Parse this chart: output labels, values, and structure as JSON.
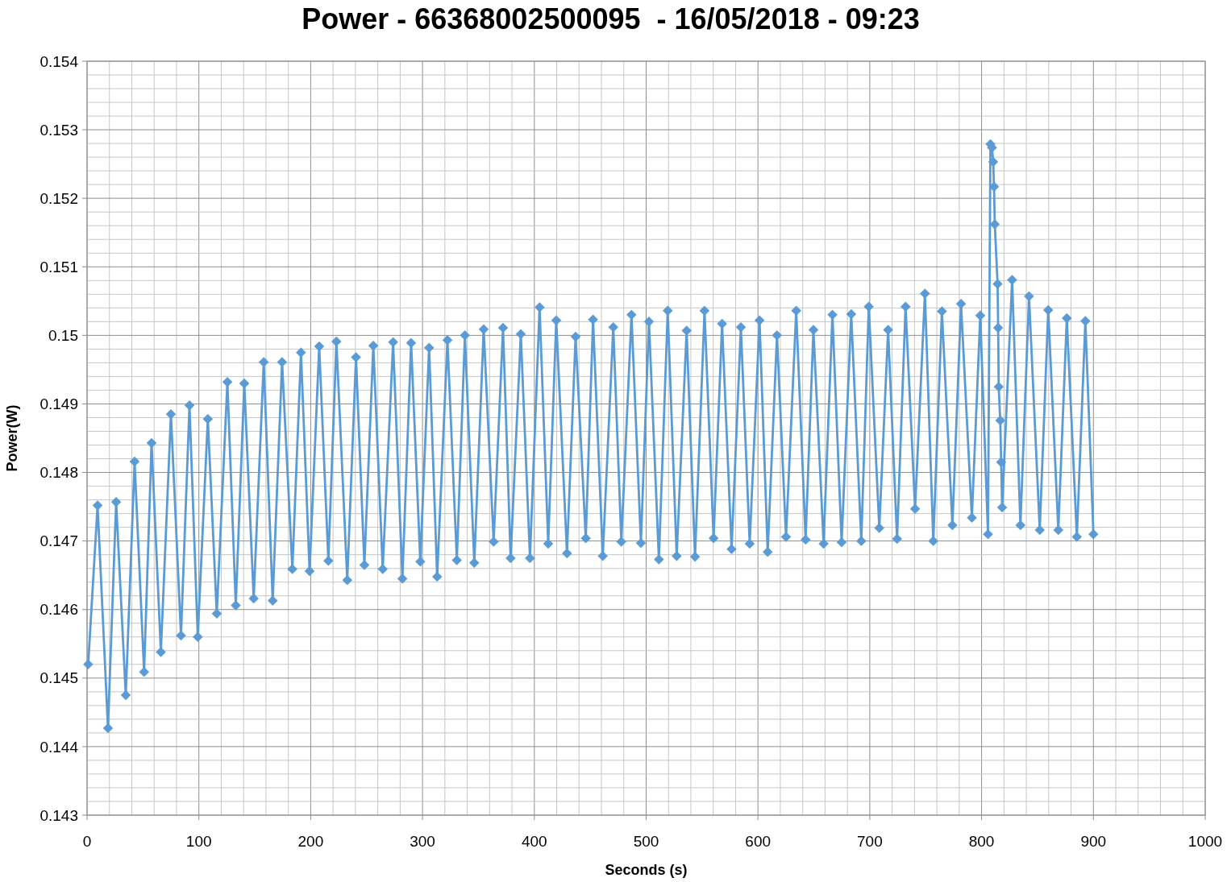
{
  "chart_data": {
    "type": "line",
    "title": "Power - 66368002500095  - 16/05/2018 - 09:23",
    "xlabel": "Seconds (s)",
    "ylabel": "Power(W)",
    "color": "#5b9bd5",
    "marker": "diamond",
    "line_style": "solid",
    "grid": true,
    "xlim": [
      0,
      1000
    ],
    "ylim": [
      0.143,
      0.154
    ],
    "xticks": [
      0,
      {
        "value": 20,
        "label": null
      },
      {
        "value": 40,
        "label": null
      },
      {
        "value": 60,
        "label": null
      },
      {
        "value": 80,
        "label": null
      },
      100,
      {
        "value": 120,
        "label": null
      },
      {
        "value": 140,
        "label": null
      },
      {
        "value": 160,
        "label": null
      },
      {
        "value": 180,
        "label": null
      },
      200,
      {
        "value": 220,
        "label": null
      },
      {
        "value": 240,
        "label": null
      },
      {
        "value": 260,
        "label": null
      },
      {
        "value": 280,
        "label": null
      },
      300,
      {
        "value": 320,
        "label": null
      },
      {
        "value": 340,
        "label": null
      },
      {
        "value": 360,
        "label": null
      },
      {
        "value": 380,
        "label": null
      },
      400,
      {
        "value": 420,
        "label": null
      },
      {
        "value": 440,
        "label": null
      },
      {
        "value": 460,
        "label": null
      },
      {
        "value": 480,
        "label": null
      },
      500,
      {
        "value": 520,
        "label": null
      },
      {
        "value": 540,
        "label": null
      },
      {
        "value": 560,
        "label": null
      },
      {
        "value": 580,
        "label": null
      },
      600,
      {
        "value": 620,
        "label": null
      },
      {
        "value": 640,
        "label": null
      },
      {
        "value": 660,
        "label": null
      },
      {
        "value": 680,
        "label": null
      },
      700,
      {
        "value": 720,
        "label": null
      },
      {
        "value": 740,
        "label": null
      },
      {
        "value": 760,
        "label": null
      },
      {
        "value": 780,
        "label": null
      },
      800,
      {
        "value": 820,
        "label": null
      },
      {
        "value": 840,
        "label": null
      },
      {
        "value": 860,
        "label": null
      },
      {
        "value": 880,
        "label": null
      },
      900,
      {
        "value": 920,
        "label": null
      },
      {
        "value": 940,
        "label": null
      },
      {
        "value": 960,
        "label": null
      },
      {
        "value": 980,
        "label": null
      },
      1000
    ],
    "yticks": [
      0.143,
      {
        "value": 0.1432,
        "label": null
      },
      {
        "value": 0.1434,
        "label": null
      },
      {
        "value": 0.1436,
        "label": null
      },
      {
        "value": 0.1438,
        "label": null
      },
      0.144,
      {
        "value": 0.1442,
        "label": null
      },
      {
        "value": 0.1444,
        "label": null
      },
      {
        "value": 0.1446,
        "label": null
      },
      {
        "value": 0.1448,
        "label": null
      },
      0.145,
      {
        "value": 0.1452,
        "label": null
      },
      {
        "value": 0.1454,
        "label": null
      },
      {
        "value": 0.1456,
        "label": null
      },
      {
        "value": 0.1458,
        "label": null
      },
      0.146,
      {
        "value": 0.1462,
        "label": null
      },
      {
        "value": 0.1464,
        "label": null
      },
      {
        "value": 0.1466,
        "label": null
      },
      {
        "value": 0.1468,
        "label": null
      },
      0.147,
      {
        "value": 0.1472,
        "label": null
      },
      {
        "value": 0.1474,
        "label": null
      },
      {
        "value": 0.1476,
        "label": null
      },
      {
        "value": 0.1478,
        "label": null
      },
      0.148,
      {
        "value": 0.1482,
        "label": null
      },
      {
        "value": 0.1484,
        "label": null
      },
      {
        "value": 0.1486,
        "label": null
      },
      {
        "value": 0.1488,
        "label": null
      },
      0.149,
      {
        "value": 0.1492,
        "label": null
      },
      {
        "value": 0.1494,
        "label": null
      },
      {
        "value": 0.1496,
        "label": null
      },
      {
        "value": 0.1498,
        "label": null
      },
      0.15,
      {
        "value": 0.1502,
        "label": null
      },
      {
        "value": 0.1504,
        "label": null
      },
      {
        "value": 0.1506,
        "label": null
      },
      {
        "value": 0.1508,
        "label": null
      },
      0.151,
      {
        "value": 0.1512,
        "label": null
      },
      {
        "value": 0.1514,
        "label": null
      },
      {
        "value": 0.1516,
        "label": null
      },
      {
        "value": 0.1518,
        "label": null
      },
      0.152,
      {
        "value": 0.1522,
        "label": null
      },
      {
        "value": 0.1524,
        "label": null
      },
      {
        "value": 0.1526,
        "label": null
      },
      {
        "value": 0.1528,
        "label": null
      },
      0.153,
      {
        "value": 0.1532,
        "label": null
      },
      {
        "value": 0.1534,
        "label": null
      },
      {
        "value": 0.1536,
        "label": null
      },
      {
        "value": 0.1538,
        "label": null
      },
      0.154
    ],
    "x": [
      1,
      9.4,
      18.7,
      26,
      34.6,
      42.5,
      51,
      57.7,
      66,
      75,
      84,
      91.6,
      99,
      108,
      116,
      125.5,
      133,
      140.6,
      149,
      158,
      166,
      174.4,
      183.6,
      191.3,
      199,
      207.6,
      215.8,
      223,
      232.7,
      240.5,
      248,
      256,
      264.4,
      273.7,
      282,
      289.8,
      298,
      305.9,
      313.1,
      322.3,
      330.7,
      337.9,
      346.3,
      354.7,
      363.6,
      372,
      378.8,
      387.9,
      396.1,
      404.7,
      412.4,
      419.6,
      429.2,
      436.9,
      446,
      452.5,
      461.2,
      470.6,
      477.8,
      486.9,
      495.3,
      502.5,
      511.4,
      519.3,
      527.3,
      536.2,
      543.7,
      552.2,
      560.3,
      567.9,
      576.4,
      584.7,
      592.6,
      601.4,
      608.7,
      617,
      625.1,
      634.2,
      642.6,
      649.6,
      658.7,
      666.6,
      674.8,
      683.4,
      692.4,
      699.1,
      708.5,
      716.4,
      724.4,
      732,
      740.5,
      749.3,
      756.8,
      764.5,
      773.9,
      781.6,
      791.3,
      798.8,
      805.7,
      807.9,
      809.3,
      810.4,
      811.1,
      811.8,
      814.3,
      814.8,
      815.3,
      816.7,
      817.5,
      818.4,
      827.3,
      834.7,
      842.4,
      852,
      859.6,
      868.6,
      876.2,
      885.2,
      892.8,
      900
    ],
    "values": [
      0.1452,
      0.14752,
      0.14427,
      0.14757,
      0.14475,
      0.14816,
      0.14509,
      0.14843,
      0.14538,
      0.14885,
      0.14562,
      0.14898,
      0.1456,
      0.14878,
      0.14594,
      0.14932,
      0.14606,
      0.1493,
      0.14616,
      0.14961,
      0.14613,
      0.14961,
      0.14659,
      0.14975,
      0.14656,
      0.14984,
      0.14671,
      0.14991,
      0.14643,
      0.14968,
      0.14665,
      0.14985,
      0.14659,
      0.1499,
      0.14645,
      0.14989,
      0.1467,
      0.14982,
      0.14648,
      0.14993,
      0.14672,
      0.15,
      0.14668,
      0.15009,
      0.14699,
      0.15011,
      0.14675,
      0.15002,
      0.14675,
      0.15041,
      0.14696,
      0.15022,
      0.14682,
      0.14998,
      0.14704,
      0.15023,
      0.14678,
      0.15012,
      0.14699,
      0.1503,
      0.14697,
      0.1502,
      0.14673,
      0.15036,
      0.14678,
      0.15007,
      0.14677,
      0.15036,
      0.14704,
      0.15017,
      0.14688,
      0.15012,
      0.14696,
      0.15022,
      0.14684,
      0.15,
      0.14706,
      0.15036,
      0.14702,
      0.15008,
      0.14696,
      0.1503,
      0.14698,
      0.15031,
      0.147,
      0.15042,
      0.14719,
      0.15008,
      0.14703,
      0.15042,
      0.14747,
      0.15061,
      0.147,
      0.15035,
      0.14723,
      0.15046,
      0.14734,
      0.15029,
      0.1471,
      0.15279,
      0.15274,
      0.15253,
      0.15217,
      0.15162,
      0.15075,
      0.15011,
      0.14925,
      0.14876,
      0.14815,
      0.14749,
      0.15081,
      0.14723,
      0.15057,
      0.14716,
      0.15037,
      0.14716,
      0.15025,
      0.14706,
      0.15021,
      0.1471
    ]
  }
}
